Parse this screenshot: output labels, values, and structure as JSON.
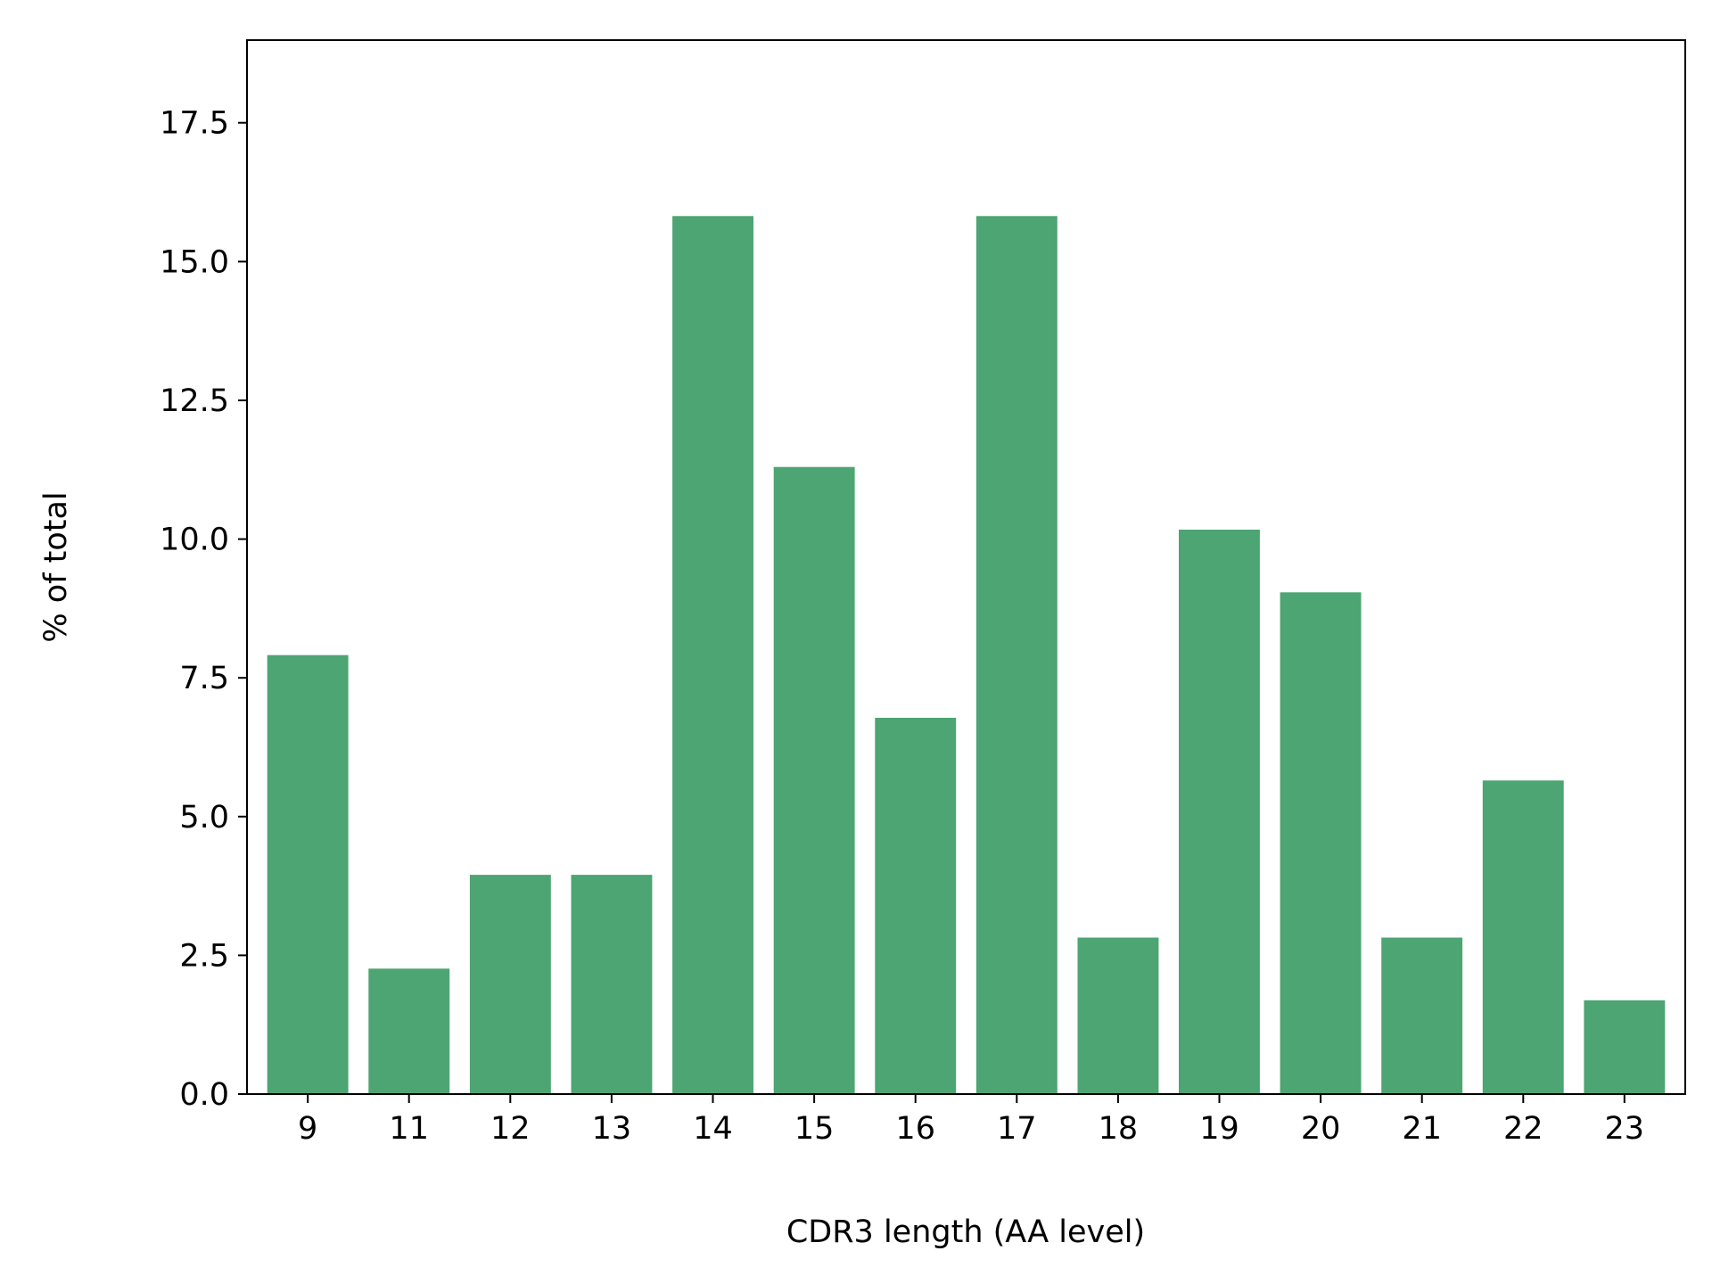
{
  "chart_data": {
    "type": "bar",
    "title": "",
    "xlabel": "CDR3 length (AA level)",
    "ylabel": "% of total",
    "categories": [
      "9",
      "11",
      "12",
      "13",
      "14",
      "15",
      "16",
      "17",
      "18",
      "19",
      "20",
      "21",
      "22",
      "23"
    ],
    "values": [
      7.91,
      2.26,
      3.95,
      3.95,
      15.82,
      11.3,
      6.78,
      15.82,
      2.82,
      10.17,
      9.04,
      2.82,
      5.65,
      1.69
    ],
    "ylim": [
      0,
      18.99
    ],
    "yticks": [
      0.0,
      2.5,
      5.0,
      7.5,
      10.0,
      12.5,
      15.0,
      17.5
    ],
    "ytick_labels": [
      "0.0",
      "2.5",
      "5.0",
      "7.5",
      "10.0",
      "12.5",
      "15.0",
      "17.5"
    ],
    "bar_color": "#4ca572",
    "grid": false,
    "legend": "none"
  }
}
